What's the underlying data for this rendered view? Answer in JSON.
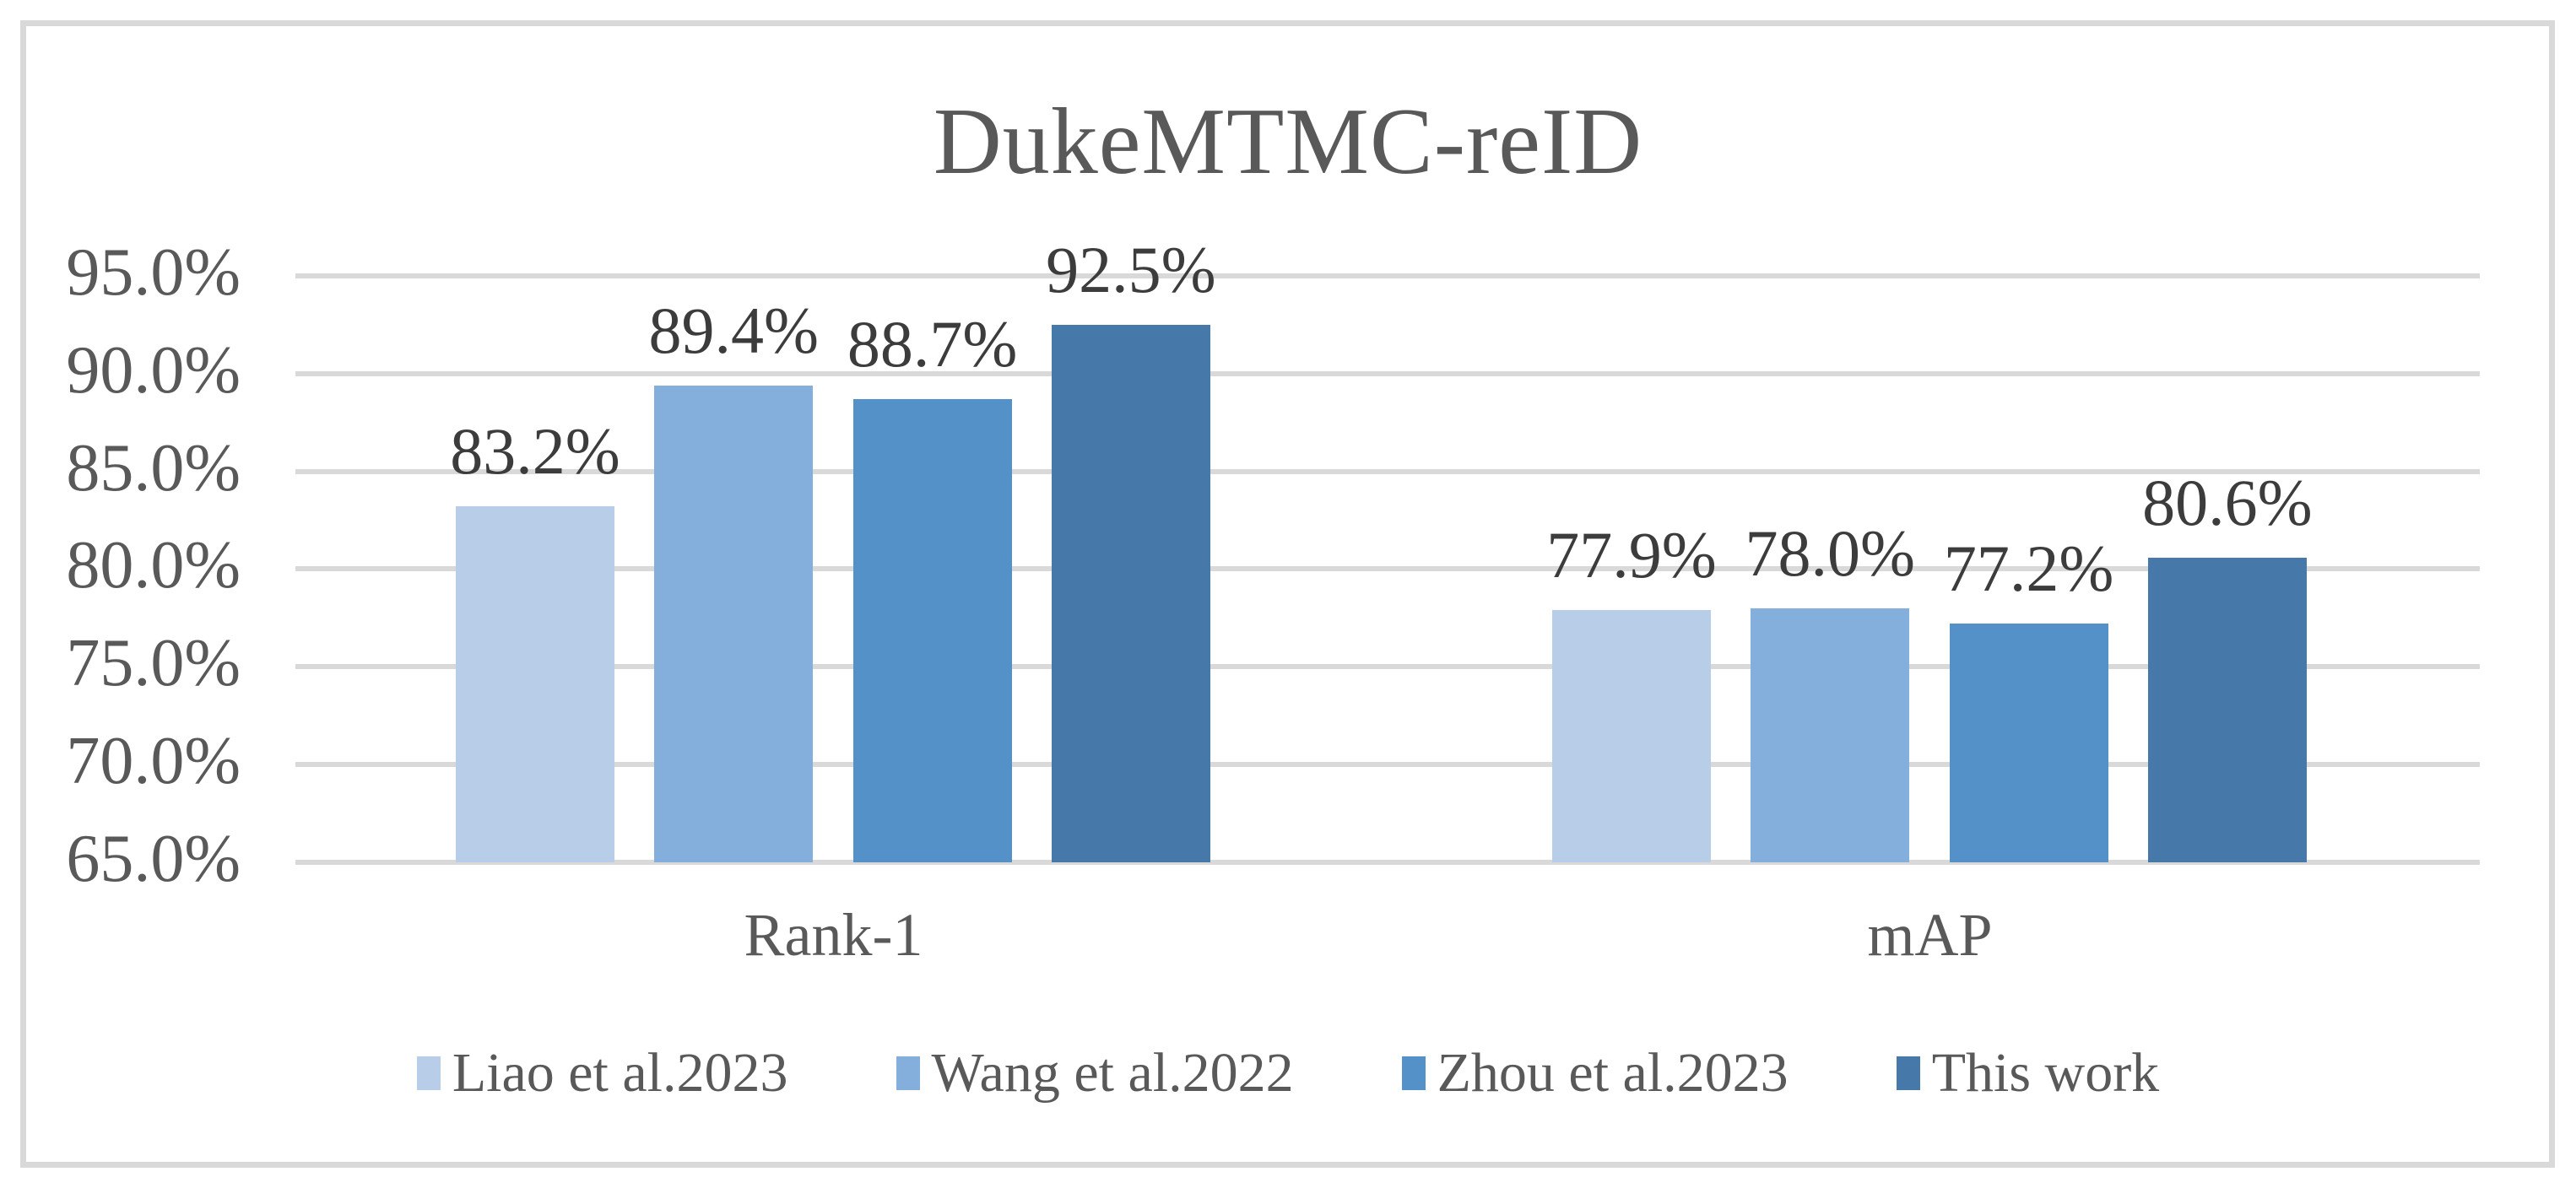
{
  "title": "DukeMTMC-reID",
  "colors": {
    "gridline": "#D9D9D9",
    "frame_border": "#D9D9D9",
    "axis_text": "#595959",
    "data_label_text": "#3C3C3C",
    "background": "#FFFFFF"
  },
  "chart_data": {
    "type": "bar",
    "title": "DukeMTMC-reID",
    "categories": [
      "Rank-1",
      "mAP"
    ],
    "series": [
      {
        "name": "Liao et al.2023",
        "color": "#B8CDE8",
        "values": [
          83.2,
          77.9
        ]
      },
      {
        "name": "Wang et al.2022",
        "color": "#84AEDC",
        "values": [
          89.4,
          78.0
        ]
      },
      {
        "name": "Zhou et al.2023",
        "color": "#5491C8",
        "values": [
          88.7,
          77.2
        ]
      },
      {
        "name": "This work",
        "color": "#4679A9",
        "values": [
          92.5,
          80.6
        ]
      }
    ],
    "data_labels": [
      [
        "83.2%",
        "89.4%",
        "88.7%",
        "92.5%"
      ],
      [
        "77.9%",
        "78.0%",
        "77.2%",
        "80.6%"
      ]
    ],
    "y_ticks": [
      "95.0%",
      "90.0%",
      "85.0%",
      "80.0%",
      "75.0%",
      "70.0%",
      "65.0%"
    ],
    "ylim": [
      65,
      95
    ],
    "y_tick_step": 5,
    "grid": true,
    "legend_position": "bottom",
    "xlabel": "",
    "ylabel": ""
  }
}
